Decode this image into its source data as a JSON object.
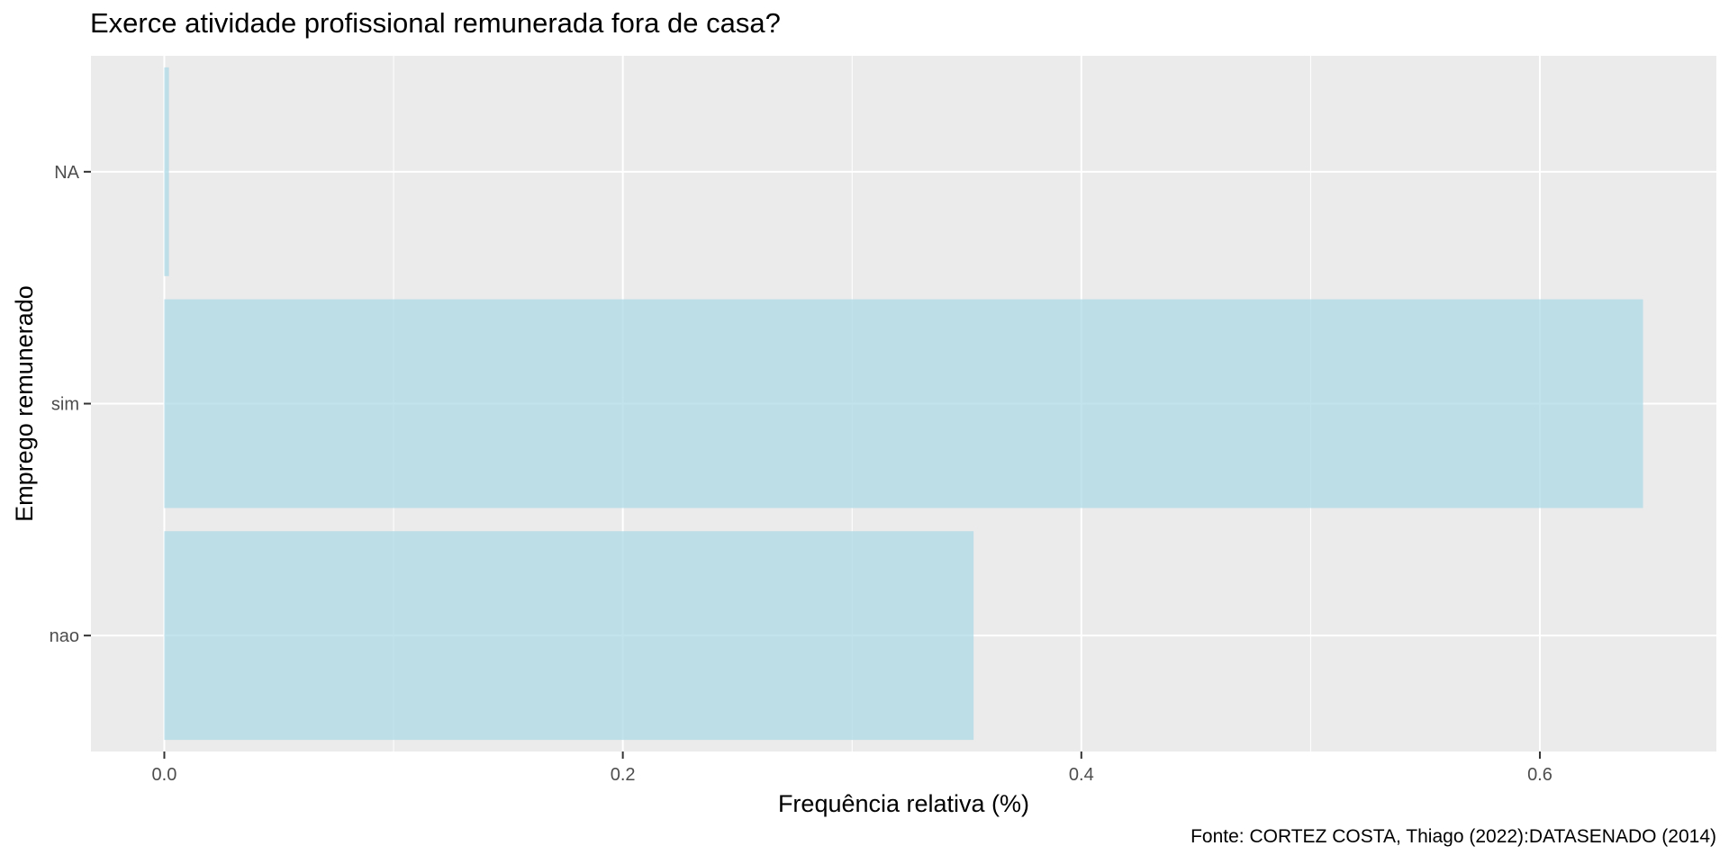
{
  "chart_data": {
    "type": "bar",
    "orientation": "horizontal",
    "title": "Exerce atividade profissional remunerada fora de casa?",
    "xlabel": "Frequência relativa (%)",
    "ylabel": "Emprego remunerado",
    "caption": "Fonte: CORTEZ COSTA, Thiago (2022):DATASENADO (2014)",
    "categories": [
      "nao",
      "sim",
      "NA"
    ],
    "values": [
      0.353,
      0.645,
      0.002
    ],
    "xlim": [
      -0.032,
      0.677
    ],
    "x_ticks": [
      0.0,
      0.2,
      0.4,
      0.6
    ],
    "x_tick_labels": [
      "0.0",
      "0.2",
      "0.4",
      "0.6"
    ],
    "x_minor_ticks": [
      0.1,
      0.3,
      0.5
    ],
    "grid": true,
    "legend": "none",
    "colors": {
      "bar": "#add8e6",
      "panel": "#ebebeb",
      "grid": "#ffffff",
      "text": "#4d4d4d"
    }
  }
}
